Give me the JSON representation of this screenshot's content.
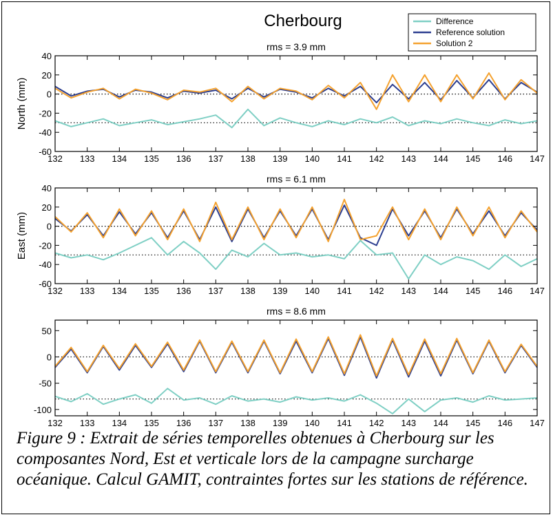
{
  "figure": {
    "title": "Cherbourg",
    "caption": "Figure 9 : Extrait de séries temporelles obtenues à Cherbourg sur les composantes Nord, Est et verticale lors de la campagne surcharge océanique. Calcul GAMIT, contraintes fortes sur les stations de référence."
  },
  "legend": {
    "placement": "top-right",
    "entries": [
      {
        "label": "Difference",
        "color": "#7ecfc4"
      },
      {
        "label": "Reference solution",
        "color": "#2b3d8f"
      },
      {
        "label": "Solution 2",
        "color": "#f4a12e"
      }
    ]
  },
  "colors": {
    "difference": "#7ecfc4",
    "reference": "#2b3d8f",
    "solution2": "#f4a12e",
    "zero_line": "#000000"
  },
  "chart_data": [
    {
      "type": "line",
      "subtitle": "rms = 3.9 mm",
      "ylabel": "North (mm)",
      "xlabel": "",
      "xlim": [
        132,
        147
      ],
      "ylim": [
        -60,
        40
      ],
      "yticks": [
        -60,
        -40,
        -20,
        0,
        20,
        40
      ],
      "xticks": [
        132,
        133,
        134,
        135,
        136,
        137,
        138,
        139,
        140,
        141,
        142,
        143,
        144,
        145,
        146,
        147
      ],
      "reference_lines": [
        0,
        -30
      ],
      "series": [
        {
          "name": "Reference solution",
          "x": [
            132.0,
            132.5,
            133.0,
            133.5,
            134.0,
            134.5,
            135.0,
            135.5,
            136.0,
            136.5,
            137.0,
            137.5,
            138.0,
            138.5,
            139.0,
            139.5,
            140.0,
            140.5,
            141.0,
            141.5,
            142.0,
            142.5,
            143.0,
            143.5,
            144.0,
            144.5,
            145.0,
            145.5,
            146.0,
            146.5,
            147.0
          ],
          "y": [
            8,
            -2,
            3,
            5,
            -3,
            4,
            2,
            -4,
            3,
            1,
            4,
            -5,
            6,
            -3,
            5,
            2,
            -4,
            6,
            -2,
            8,
            -9,
            10,
            -5,
            12,
            -6,
            14,
            -4,
            15,
            -5,
            12,
            2
          ]
        },
        {
          "name": "Solution 2",
          "x": [
            132.0,
            132.5,
            133.0,
            133.5,
            134.0,
            134.5,
            135.0,
            135.5,
            136.0,
            136.5,
            137.0,
            137.5,
            138.0,
            138.5,
            139.0,
            139.5,
            140.0,
            140.5,
            141.0,
            141.5,
            142.0,
            142.5,
            143.0,
            143.5,
            144.0,
            144.5,
            145.0,
            145.5,
            146.0,
            146.5,
            147.0
          ],
          "y": [
            6,
            -4,
            2,
            6,
            -5,
            5,
            1,
            -6,
            4,
            2,
            6,
            -8,
            8,
            -5,
            6,
            3,
            -6,
            9,
            -4,
            12,
            -16,
            20,
            -8,
            20,
            -8,
            20,
            -5,
            22,
            -6,
            15,
            1
          ]
        },
        {
          "name": "Difference",
          "x": [
            132.0,
            132.5,
            133.0,
            133.5,
            134.0,
            134.5,
            135.0,
            135.5,
            136.0,
            136.5,
            137.0,
            137.5,
            138.0,
            138.5,
            139.0,
            139.5,
            140.0,
            140.5,
            141.0,
            141.5,
            142.0,
            142.5,
            143.0,
            143.5,
            144.0,
            144.5,
            145.0,
            145.5,
            146.0,
            146.5,
            147.0
          ],
          "y": [
            -28,
            -34,
            -30,
            -26,
            -33,
            -30,
            -27,
            -32,
            -29,
            -26,
            -22,
            -35,
            -16,
            -33,
            -25,
            -30,
            -34,
            -28,
            -32,
            -26,
            -30,
            -24,
            -33,
            -28,
            -31,
            -26,
            -30,
            -33,
            -27,
            -31,
            -28
          ]
        }
      ]
    },
    {
      "type": "line",
      "subtitle": "rms = 6.1 mm",
      "ylabel": "East (mm)",
      "xlabel": "",
      "xlim": [
        132,
        147
      ],
      "ylim": [
        -60,
        40
      ],
      "yticks": [
        -60,
        -40,
        -20,
        0,
        20,
        40
      ],
      "xticks": [
        132,
        133,
        134,
        135,
        136,
        137,
        138,
        139,
        140,
        141,
        142,
        143,
        144,
        145,
        146,
        147
      ],
      "reference_lines": [
        0,
        -30
      ],
      "series": [
        {
          "name": "Reference solution",
          "x": [
            132.0,
            132.5,
            133.0,
            133.5,
            134.0,
            134.5,
            135.0,
            135.5,
            136.0,
            136.5,
            137.0,
            137.5,
            138.0,
            138.5,
            139.0,
            139.5,
            140.0,
            140.5,
            141.0,
            141.5,
            142.0,
            142.5,
            143.0,
            143.5,
            144.0,
            144.5,
            145.0,
            145.5,
            146.0,
            146.5,
            147.0
          ],
          "y": [
            8,
            -5,
            12,
            -10,
            15,
            -8,
            14,
            -12,
            16,
            -14,
            20,
            -16,
            18,
            -12,
            16,
            -10,
            18,
            -14,
            22,
            -12,
            -20,
            18,
            -10,
            16,
            -12,
            18,
            -8,
            16,
            -10,
            14,
            -4
          ]
        },
        {
          "name": "Solution 2",
          "x": [
            132.0,
            132.5,
            133.0,
            133.5,
            134.0,
            134.5,
            135.0,
            135.5,
            136.0,
            136.5,
            137.0,
            137.5,
            138.0,
            138.5,
            139.0,
            139.5,
            140.0,
            140.5,
            141.0,
            141.5,
            142.0,
            142.5,
            143.0,
            143.5,
            144.0,
            144.5,
            145.0,
            145.5,
            146.0,
            146.5,
            147.0
          ],
          "y": [
            10,
            -6,
            14,
            -12,
            18,
            -10,
            16,
            -14,
            18,
            -16,
            25,
            -14,
            20,
            -14,
            18,
            -12,
            20,
            -16,
            28,
            -14,
            -10,
            20,
            -14,
            18,
            -14,
            20,
            -10,
            20,
            -12,
            16,
            -6
          ]
        },
        {
          "name": "Difference",
          "x": [
            132.0,
            132.5,
            133.0,
            133.5,
            134.0,
            134.5,
            135.0,
            135.5,
            136.0,
            136.5,
            137.0,
            137.5,
            138.0,
            138.5,
            139.0,
            139.5,
            140.0,
            140.5,
            141.0,
            141.5,
            142.0,
            142.5,
            143.0,
            143.5,
            144.0,
            144.5,
            145.0,
            145.5,
            146.0,
            146.5,
            147.0
          ],
          "y": [
            -28,
            -33,
            -30,
            -35,
            -28,
            -20,
            -12,
            -30,
            -16,
            -28,
            -45,
            -25,
            -32,
            -18,
            -30,
            -28,
            -32,
            -30,
            -34,
            -15,
            -30,
            -28,
            -55,
            -30,
            -40,
            -32,
            -36,
            -45,
            -30,
            -42,
            -34
          ]
        }
      ]
    },
    {
      "type": "line",
      "subtitle": "rms = 8.6 mm",
      "ylabel": "",
      "xlabel": "",
      "xlim": [
        132,
        147
      ],
      "ylim": [
        -112,
        70
      ],
      "yticks": [
        -100,
        -50,
        0,
        50
      ],
      "xticks": [
        132,
        133,
        134,
        135,
        136,
        137,
        138,
        139,
        140,
        141,
        142,
        143,
        144,
        145,
        146,
        147
      ],
      "reference_lines": [
        0,
        -80
      ],
      "series": [
        {
          "name": "Reference solution",
          "x": [
            132.0,
            132.5,
            133.0,
            133.5,
            134.0,
            134.5,
            135.0,
            135.5,
            136.0,
            136.5,
            137.0,
            137.5,
            138.0,
            138.5,
            139.0,
            139.5,
            140.0,
            140.5,
            141.0,
            141.5,
            142.0,
            142.5,
            143.0,
            143.5,
            144.0,
            144.5,
            145.0,
            145.5,
            146.0,
            146.5,
            147.0
          ],
          "y": [
            -20,
            15,
            -30,
            20,
            -25,
            22,
            -20,
            25,
            -28,
            30,
            -30,
            28,
            -30,
            30,
            -32,
            30,
            -30,
            35,
            -35,
            38,
            -40,
            32,
            -38,
            30,
            -36,
            32,
            -32,
            30,
            -30,
            22,
            -20
          ]
        },
        {
          "name": "Solution 2",
          "x": [
            132.0,
            132.5,
            133.0,
            133.5,
            134.0,
            134.5,
            135.0,
            135.5,
            136.0,
            136.5,
            137.0,
            137.5,
            138.0,
            138.5,
            139.0,
            139.5,
            140.0,
            140.5,
            141.0,
            141.5,
            142.0,
            142.5,
            143.0,
            143.5,
            144.0,
            144.5,
            145.0,
            145.5,
            146.0,
            146.5,
            147.0
          ],
          "y": [
            -18,
            18,
            -28,
            22,
            -22,
            25,
            -18,
            28,
            -25,
            32,
            -28,
            30,
            -28,
            32,
            -30,
            34,
            -28,
            38,
            -32,
            42,
            -36,
            35,
            -34,
            34,
            -32,
            35,
            -30,
            32,
            -28,
            24,
            -18
          ]
        },
        {
          "name": "Difference",
          "x": [
            132.0,
            132.5,
            133.0,
            133.5,
            134.0,
            134.5,
            135.0,
            135.5,
            136.0,
            136.5,
            137.0,
            137.5,
            138.0,
            138.5,
            139.0,
            139.5,
            140.0,
            140.5,
            141.0,
            141.5,
            142.0,
            142.5,
            143.0,
            143.5,
            144.0,
            144.5,
            145.0,
            145.5,
            146.0,
            146.5,
            147.0
          ],
          "y": [
            -75,
            -85,
            -70,
            -90,
            -80,
            -72,
            -88,
            -60,
            -82,
            -78,
            -90,
            -74,
            -84,
            -80,
            -86,
            -76,
            -82,
            -78,
            -84,
            -72,
            -88,
            -108,
            -80,
            -104,
            -82,
            -78,
            -86,
            -74,
            -82,
            -80,
            -78
          ]
        }
      ]
    }
  ]
}
